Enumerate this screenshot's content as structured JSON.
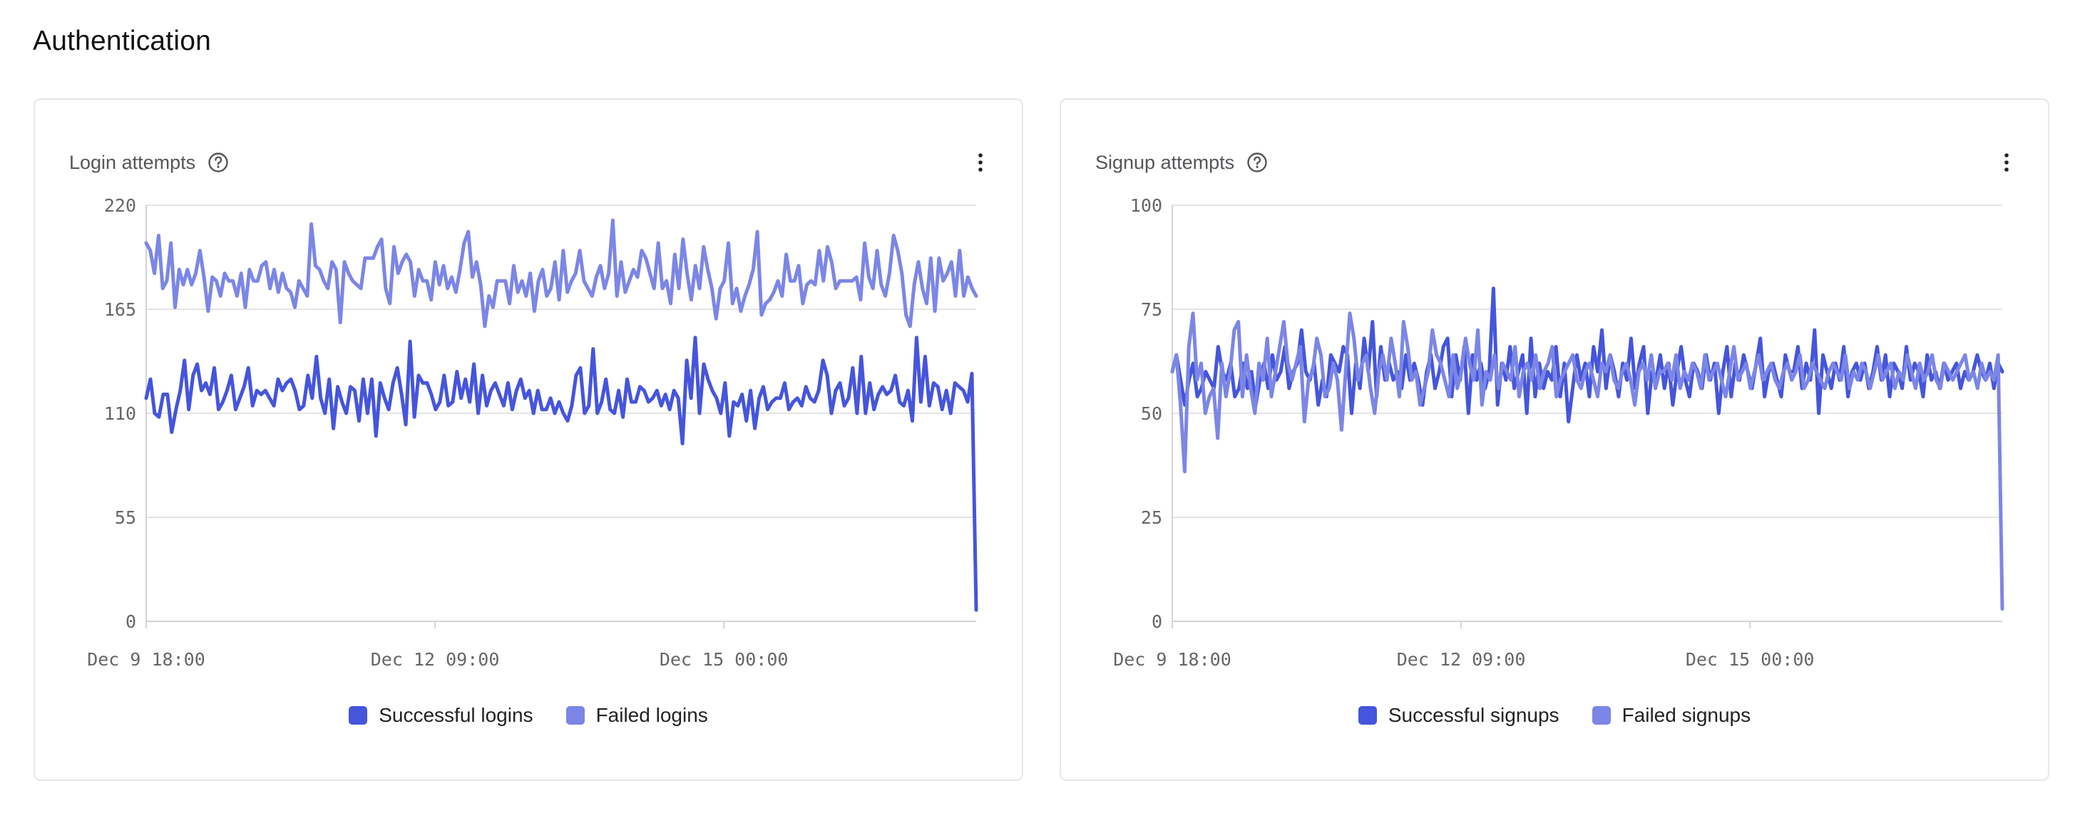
{
  "page": {
    "title": "Authentication"
  },
  "colors": {
    "successful": "#4555dc",
    "failed": "#7b86e6",
    "grid": "#e4e4e7",
    "axis": "#d4d4d8"
  },
  "charts": [
    {
      "title": "Login attempts",
      "help_icon": "question-circle-icon",
      "menu_icon": "more-vertical-icon",
      "legend": [
        "Successful logins",
        "Failed logins"
      ]
    },
    {
      "title": "Signup attempts",
      "help_icon": "question-circle-icon",
      "menu_icon": "more-vertical-icon",
      "legend": [
        "Successful signups",
        "Failed signups"
      ]
    }
  ],
  "chart_data": [
    {
      "type": "line",
      "ylim": [
        0,
        220
      ],
      "yticks": [
        "0",
        "55",
        "110",
        "165",
        "220"
      ],
      "xticks": [
        "Dec 9 18:00",
        "Dec 12 09:00",
        "Dec 15 00:00"
      ],
      "grid": true,
      "legend_position": "bottom-center",
      "series": [
        {
          "name": "Successful logins",
          "values": [
            118,
            128,
            110,
            108,
            120,
            120,
            100,
            112,
            122,
            138,
            112,
            130,
            136,
            122,
            126,
            120,
            134,
            112,
            116,
            122,
            130,
            112,
            118,
            124,
            134,
            114,
            122,
            120,
            122,
            118,
            114,
            128,
            122,
            126,
            128,
            122,
            112,
            114,
            130,
            118,
            140,
            118,
            110,
            128,
            102,
            124,
            116,
            110,
            124,
            122,
            106,
            128,
            110,
            128,
            98,
            126,
            118,
            112,
            126,
            134,
            120,
            104,
            148,
            108,
            130,
            126,
            126,
            120,
            112,
            116,
            130,
            114,
            116,
            132,
            118,
            128,
            116,
            136,
            110,
            130,
            114,
            122,
            126,
            120,
            114,
            126,
            112,
            122,
            128,
            118,
            122,
            110,
            122,
            112,
            112,
            118,
            110,
            116,
            110,
            106,
            114,
            130,
            134,
            110,
            114,
            144,
            110,
            116,
            128,
            112,
            110,
            122,
            108,
            128,
            116,
            116,
            124,
            122,
            116,
            118,
            122,
            114,
            120,
            112,
            122,
            118,
            94,
            138,
            118,
            150,
            110,
            136,
            128,
            122,
            118,
            110,
            126,
            98,
            116,
            114,
            120,
            106,
            122,
            102,
            118,
            124,
            112,
            116,
            118,
            118,
            126,
            112,
            116,
            118,
            114,
            124,
            118,
            116,
            122,
            138,
            130,
            110,
            122,
            126,
            114,
            118,
            134,
            110,
            140,
            110,
            126,
            112,
            120,
            124,
            120,
            122,
            130,
            116,
            114,
            122,
            106,
            150,
            116,
            140,
            114,
            126,
            124,
            112,
            122,
            110,
            126,
            124,
            122,
            116,
            131,
            6
          ]
        },
        {
          "name": "Failed logins",
          "values": [
            200,
            196,
            184,
            204,
            176,
            180,
            200,
            166,
            186,
            178,
            186,
            178,
            184,
            196,
            182,
            164,
            182,
            180,
            172,
            184,
            180,
            180,
            172,
            184,
            166,
            186,
            180,
            180,
            188,
            190,
            176,
            186,
            174,
            184,
            176,
            174,
            166,
            180,
            176,
            172,
            210,
            188,
            186,
            180,
            176,
            190,
            186,
            158,
            190,
            184,
            180,
            178,
            176,
            192,
            192,
            192,
            198,
            202,
            176,
            168,
            198,
            184,
            190,
            194,
            190,
            172,
            186,
            180,
            180,
            170,
            190,
            178,
            188,
            176,
            182,
            174,
            186,
            200,
            206,
            182,
            190,
            178,
            156,
            172,
            166,
            180,
            180,
            180,
            168,
            188,
            174,
            180,
            172,
            184,
            164,
            180,
            186,
            172,
            176,
            190,
            170,
            196,
            174,
            180,
            184,
            196,
            180,
            176,
            172,
            182,
            188,
            176,
            184,
            212,
            172,
            190,
            174,
            180,
            186,
            182,
            196,
            192,
            184,
            176,
            200,
            176,
            180,
            168,
            194,
            176,
            202,
            184,
            170,
            188,
            176,
            198,
            186,
            176,
            160,
            176,
            180,
            200,
            168,
            176,
            164,
            172,
            178,
            186,
            206,
            162,
            168,
            170,
            174,
            180,
            172,
            194,
            180,
            180,
            188,
            168,
            178,
            180,
            178,
            196,
            180,
            198,
            190,
            176,
            180,
            180,
            180,
            180,
            182,
            170,
            200,
            182,
            176,
            196,
            178,
            172,
            184,
            204,
            196,
            184,
            162,
            156,
            178,
            190,
            176,
            168,
            192,
            164,
            192,
            180,
            184,
            190,
            172,
            196,
            172,
            182,
            176,
            172
          ]
        }
      ]
    },
    {
      "type": "line",
      "ylim": [
        0,
        100
      ],
      "yticks": [
        "0",
        "25",
        "50",
        "75",
        "100"
      ],
      "xticks": [
        "Dec 9 18:00",
        "Dec 12 09:00",
        "Dec 15 00:00"
      ],
      "grid": true,
      "legend_position": "bottom-center",
      "series": [
        {
          "name": "Successful signups",
          "values": [
            60,
            64,
            58,
            52,
            58,
            62,
            54,
            56,
            60,
            58,
            56,
            66,
            60,
            58,
            62,
            54,
            56,
            62,
            56,
            60,
            52,
            58,
            62,
            56,
            64,
            58,
            60,
            66,
            56,
            60,
            62,
            70,
            60,
            58,
            62,
            52,
            58,
            54,
            64,
            62,
            60,
            66,
            64,
            50,
            62,
            56,
            68,
            60,
            72,
            54,
            66,
            58,
            62,
            58,
            60,
            56,
            64,
            58,
            62,
            58,
            52,
            60,
            64,
            56,
            60,
            66,
            68,
            54,
            64,
            58,
            66,
            50,
            64,
            58,
            62,
            56,
            60,
            80,
            52,
            62,
            58,
            66,
            56,
            60,
            64,
            50,
            68,
            54,
            62,
            56,
            60,
            58,
            66,
            54,
            62,
            48,
            56,
            64,
            58,
            62,
            54,
            66,
            60,
            70,
            56,
            64,
            60,
            54,
            62,
            58,
            68,
            56,
            62,
            66,
            50,
            60,
            58,
            64,
            56,
            62,
            52,
            60,
            66,
            58,
            54,
            62,
            60,
            56,
            64,
            58,
            62,
            50,
            60,
            66,
            54,
            62,
            58,
            64,
            60,
            56,
            62,
            68,
            54,
            60,
            62,
            58,
            54,
            64,
            60,
            60,
            66,
            56,
            62,
            58,
            70,
            50,
            64,
            60,
            56,
            62,
            58,
            66,
            54,
            60,
            62,
            58,
            62,
            56,
            60,
            66,
            58,
            64,
            54,
            62,
            60,
            56,
            66,
            58,
            62,
            60,
            54,
            64,
            58,
            60,
            56,
            62,
            58,
            60,
            62,
            56,
            60,
            58,
            60,
            64,
            60,
            58,
            62,
            56,
            62,
            60
          ]
        },
        {
          "name": "Failed signups",
          "values": [
            60,
            64,
            52,
            36,
            66,
            74,
            58,
            62,
            50,
            54,
            56,
            44,
            62,
            54,
            60,
            70,
            72,
            54,
            64,
            56,
            50,
            62,
            58,
            68,
            54,
            60,
            66,
            72,
            62,
            58,
            62,
            66,
            48,
            58,
            60,
            68,
            64,
            54,
            56,
            62,
            58,
            46,
            60,
            74,
            68,
            58,
            62,
            64,
            56,
            50,
            60,
            64,
            58,
            68,
            62,
            54,
            72,
            66,
            58,
            60,
            52,
            56,
            60,
            70,
            64,
            62,
            58,
            54,
            64,
            56,
            60,
            68,
            62,
            58,
            70,
            52,
            60,
            58,
            64,
            56,
            62,
            60,
            58,
            66,
            54,
            60,
            62,
            58,
            64,
            56,
            60,
            62,
            66,
            54,
            58,
            60,
            62,
            64,
            58,
            56,
            60,
            62,
            58,
            54,
            62,
            60,
            64,
            58,
            56,
            60,
            62,
            58,
            52,
            60,
            62,
            58,
            64,
            56,
            60,
            60,
            62,
            58,
            64,
            56,
            60,
            58,
            62,
            60,
            56,
            64,
            58,
            60,
            62,
            58,
            54,
            60,
            66,
            58,
            60,
            62,
            56,
            60,
            64,
            58,
            60,
            62,
            58,
            56,
            60,
            62,
            58,
            60,
            64,
            56,
            58,
            62,
            60,
            58,
            56,
            60,
            62,
            60,
            58,
            64,
            56,
            60,
            58,
            62,
            60,
            56,
            60,
            64,
            58,
            60,
            62,
            56,
            60,
            58,
            64,
            60,
            56,
            62,
            58,
            60,
            64,
            58,
            56,
            62,
            60,
            58,
            60,
            62,
            64,
            58,
            60,
            56,
            62,
            58,
            60,
            58,
            64,
            3
          ]
        }
      ]
    }
  ]
}
